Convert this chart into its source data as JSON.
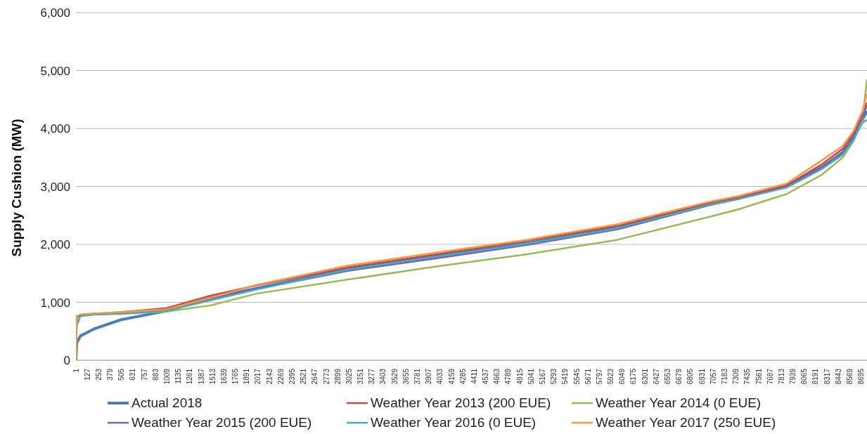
{
  "chart_data": {
    "type": "line",
    "ylabel": "Supply Cushion (MW)",
    "x": [
      1,
      10,
      50,
      200,
      500,
      1000,
      1500,
      2000,
      3000,
      4000,
      5000,
      6000,
      7000,
      7326,
      7870,
      8259,
      8492,
      8609,
      8710,
      8760
    ],
    "xlim": [
      1,
      8760
    ],
    "xticks": [
      1,
      127,
      253,
      379,
      505,
      631,
      757,
      883,
      1009,
      1135,
      1261,
      1387,
      1513,
      1639,
      1765,
      1891,
      2017,
      2143,
      2269,
      2395,
      2521,
      2647,
      2773,
      2899,
      3025,
      3151,
      3277,
      3403,
      3529,
      3655,
      3781,
      3907,
      4033,
      4159,
      4285,
      4411,
      4537,
      4663,
      4789,
      4915,
      5041,
      5167,
      5293,
      5419,
      5545,
      5671,
      5797,
      5923,
      6049,
      6175,
      6301,
      6427,
      6553,
      6679,
      6805,
      6931,
      7057,
      7183,
      7309,
      7435,
      7561,
      7687,
      7813,
      7939,
      8065,
      8191,
      8317,
      8443,
      8569,
      8695
    ],
    "ylim": [
      0,
      6000
    ],
    "yticks": [
      0,
      {
        "value": 1000,
        "label": "1,000"
      },
      {
        "value": 2000,
        "label": "2,000"
      },
      {
        "value": 3000,
        "label": "3,000"
      },
      {
        "value": 4000,
        "label": "4,000"
      },
      {
        "value": 5000,
        "label": "5,000"
      },
      {
        "value": 6000,
        "label": "6,000"
      }
    ],
    "grid": "y",
    "legend": "bottom",
    "marker": "none",
    "line_style": "solid",
    "series": [
      {
        "name": "Actual 2018",
        "color": "#4a7ebb",
        "values": [
          0,
          300,
          420,
          540,
          700,
          850,
          1080,
          1240,
          1570,
          1800,
          2020,
          2290,
          2690,
          2790,
          3000,
          3330,
          3580,
          3830,
          4150,
          4300
        ]
      },
      {
        "name": "Weather Year 2013 (200 EUE)",
        "color": "#be4b48",
        "values": [
          0,
          740,
          770,
          800,
          830,
          900,
          1120,
          1290,
          1600,
          1830,
          2060,
          2320,
          2710,
          2810,
          3020,
          3380,
          3650,
          3920,
          4250,
          4450
        ]
      },
      {
        "name": "Weather Year 2014 (0 EUE)",
        "color": "#98b954",
        "values": [
          700,
          760,
          780,
          790,
          800,
          840,
          950,
          1150,
          1390,
          1620,
          1830,
          2080,
          2470,
          2600,
          2870,
          3200,
          3500,
          3780,
          4150,
          4850
        ]
      },
      {
        "name": "Weather Year 2015 (200 EUE)",
        "color": "#7d60a0",
        "values": [
          0,
          740,
          770,
          790,
          810,
          860,
          1060,
          1230,
          1540,
          1760,
          1990,
          2260,
          2670,
          2780,
          2990,
          3330,
          3600,
          3870,
          4200,
          4400
        ]
      },
      {
        "name": "Weather Year 2016 (0 EUE)",
        "color": "#46aac5",
        "values": [
          0,
          600,
          760,
          790,
          810,
          850,
          1040,
          1220,
          1560,
          1790,
          2010,
          2280,
          2680,
          2780,
          2980,
          3300,
          3550,
          3800,
          4100,
          4150
        ]
      },
      {
        "name": "Weather Year 2017 (250 EUE)",
        "color": "#f79646",
        "values": [
          0,
          760,
          790,
          810,
          830,
          880,
          1080,
          1300,
          1630,
          1860,
          2080,
          2350,
          2730,
          2830,
          3050,
          3450,
          3700,
          3950,
          4300,
          4600
        ]
      }
    ]
  }
}
